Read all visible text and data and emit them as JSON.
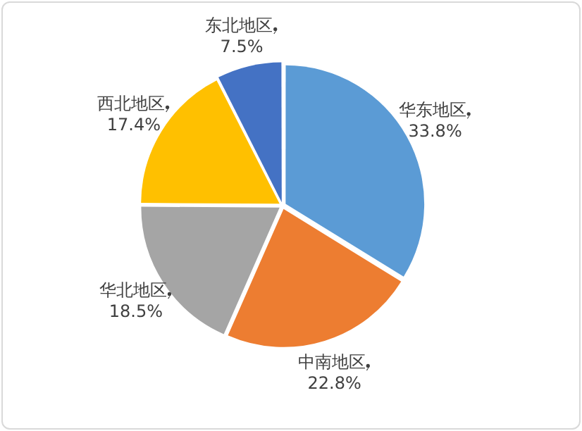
{
  "chart_data": {
    "type": "pie",
    "categories": [
      "华东地区",
      "中南地区",
      "华北地区",
      "西北地区",
      "东北地区"
    ],
    "values": [
      33.8,
      22.8,
      18.5,
      17.4,
      7.5
    ],
    "colors": [
      "#5b9bd5",
      "#ed7d31",
      "#a5a5a5",
      "#ffc000",
      "#4472c4"
    ],
    "value_labels": [
      "33.8%",
      "22.8%",
      "18.5%",
      "17.4%",
      "7.5%"
    ],
    "legend": false
  }
}
